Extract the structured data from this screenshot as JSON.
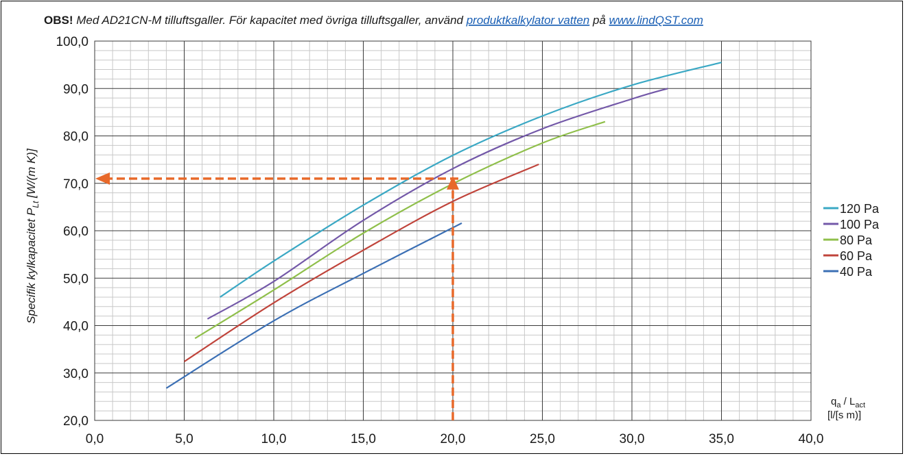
{
  "note": {
    "bold": "OBS!",
    "text1": " Med AD21CN-M tilluftsgaller. För kapacitet med övriga tilluftsgaller, använd ",
    "link1": "produktkalkylator vatten",
    "text2": " på ",
    "link2": "www.lindQST.com",
    "link_color": "#1a5fb4"
  },
  "chart_data": {
    "type": "line",
    "ylabel_main": "Specifik kylkapacitet P",
    "ylabel_sub": "Lt",
    "ylabel_unit": " [W/(m K)]",
    "xlabel_line1_q": "q",
    "xlabel_line1_q_sub": "a",
    "xlabel_line1_mid": " / L",
    "xlabel_line1_l_sub": "act",
    "xlabel_line2": "[l/[s m)]",
    "xlim": [
      0,
      40
    ],
    "ylim": [
      20,
      100
    ],
    "x_ticks": [
      "0,0",
      "5,0",
      "10,0",
      "15,0",
      "20,0",
      "25,0",
      "30,0",
      "35,0",
      "40,0"
    ],
    "y_ticks": [
      "20,0",
      "30,0",
      "40,0",
      "50,0",
      "60,0",
      "70,0",
      "80,0",
      "90,0",
      "100,0"
    ],
    "grid": true,
    "legend_position": "right",
    "series": [
      {
        "name": "120 Pa",
        "color": "#3aa8c4",
        "x": [
          7.0,
          10.0,
          15.0,
          20.0,
          25.0,
          30.0,
          35.0
        ],
        "y": [
          46.0,
          53.6,
          65.4,
          75.9,
          84.2,
          90.7,
          95.5
        ]
      },
      {
        "name": "100 Pa",
        "color": "#7358a8",
        "x": [
          6.3,
          10.0,
          15.0,
          20.0,
          25.0,
          30.0,
          32.0
        ],
        "y": [
          41.4,
          49.3,
          62.2,
          73.1,
          81.5,
          87.8,
          90.0
        ]
      },
      {
        "name": "80 Pa",
        "color": "#8fbf4a",
        "x": [
          5.6,
          10.0,
          15.0,
          20.0,
          25.0,
          28.5
        ],
        "y": [
          37.3,
          47.5,
          59.5,
          69.9,
          78.5,
          83.0
        ]
      },
      {
        "name": "60 Pa",
        "color": "#c0443b",
        "x": [
          5.0,
          10.0,
          15.0,
          20.0,
          24.8
        ],
        "y": [
          32.4,
          44.8,
          55.9,
          66.2,
          74.0
        ]
      },
      {
        "name": "40 Pa",
        "color": "#3b6fb4",
        "x": [
          4.0,
          10.0,
          15.0,
          20.5
        ],
        "y": [
          26.8,
          41.0,
          51.0,
          61.6
        ]
      }
    ],
    "annotation": {
      "color": "#e8692a",
      "x": 20.0,
      "y": 71.0
    }
  }
}
